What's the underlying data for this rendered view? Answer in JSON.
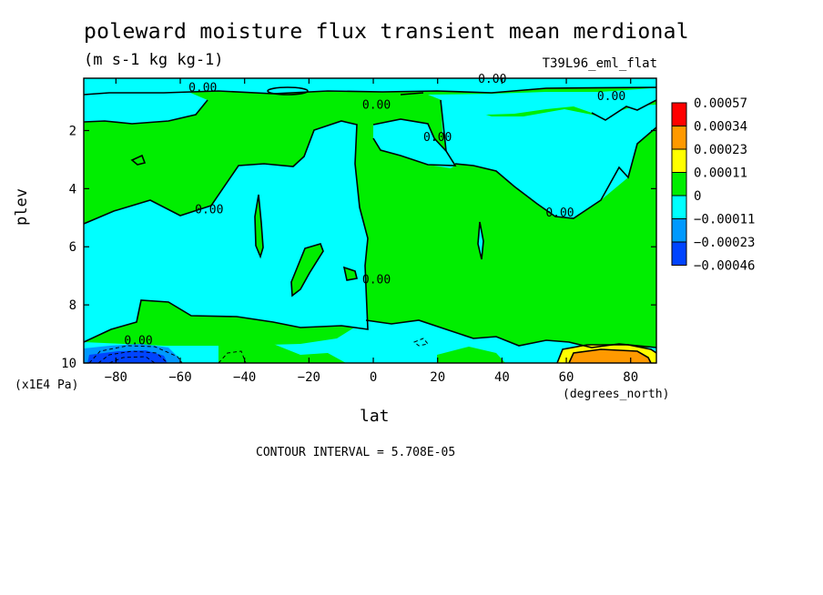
{
  "header": {
    "title": "poleward moisture flux transient mean merdional",
    "units": "(m s-1 kg kg-1)",
    "run_name": "T39L96_eml_flat"
  },
  "footer": {
    "contour_interval": "CONTOUR INTERVAL = 5.708E-05"
  },
  "colors": {
    "red": "#ff0000",
    "orange": "#ff9900",
    "yellow": "#ffff00",
    "green": "#00ee00",
    "cyan": "#00ffff",
    "mid_blue": "#0099ff",
    "blue": "#0044ff"
  },
  "chart_data": {
    "type": "contour",
    "title": "poleward moisture flux transient mean merdional",
    "units_label": "(m s-1 kg kg-1)",
    "xlabel": "lat",
    "xunits": "(degrees_north)",
    "ylabel": "plev",
    "yunits": "(x1E4 Pa)",
    "xlim": [
      -90,
      88
    ],
    "ylim": [
      0.2,
      10
    ],
    "y_inverted": true,
    "xticks": [
      -80,
      -60,
      -40,
      -20,
      0,
      20,
      40,
      60,
      80
    ],
    "yticks": [
      2,
      4,
      6,
      8,
      10
    ],
    "contour_interval": 5.708e-05,
    "legend_position": "right",
    "legend": [
      {
        "label": "0.00057",
        "color": "#ff0000"
      },
      {
        "label": "0.00034",
        "color": "#ff9900"
      },
      {
        "label": "0.00023",
        "color": "#ffff00"
      },
      {
        "label": "0.00011",
        "color": "#00ee00"
      },
      {
        "label": "0",
        "color": "#00ffff"
      },
      {
        "label": "-0.00011",
        "color": "#0099ff"
      },
      {
        "label": "-0.00023",
        "color": "#0044ff"
      },
      {
        "label": "-0.00046",
        "color": null
      }
    ],
    "contour_labels": [
      {
        "text": "0.00",
        "lat": -53,
        "plev": 0.5
      },
      {
        "text": "0.00",
        "lat": -51,
        "plev": 4.7
      },
      {
        "text": "0.00",
        "lat": -73,
        "plev": 9.2
      },
      {
        "text": "0.00",
        "lat": 1,
        "plev": 1.1
      },
      {
        "text": "0.00",
        "lat": 20,
        "plev": 2.2
      },
      {
        "text": "0.00",
        "lat": 1,
        "plev": 7.1
      },
      {
        "text": "0.00",
        "lat": 37,
        "plev": 0.2
      },
      {
        "text": "0.00",
        "lat": 58,
        "plev": 4.8
      },
      {
        "text": "0.00",
        "lat": 74,
        "plev": 0.8
      }
    ]
  }
}
